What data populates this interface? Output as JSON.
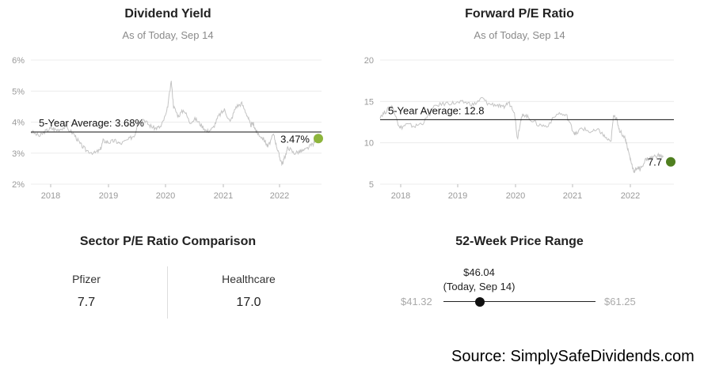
{
  "chart_data": [
    {
      "type": "line",
      "title": "Dividend Yield",
      "subtitle": "As of Today, Sep 14",
      "y_ticks": [
        "6%",
        "5%",
        "4%",
        "3%",
        "2%"
      ],
      "y_tick_values": [
        6,
        5,
        4,
        3,
        2
      ],
      "ylim": [
        2,
        6
      ],
      "x_ticks": [
        "2018",
        "2019",
        "2020",
        "2021",
        "2022"
      ],
      "xlim": [
        2017.75,
        2022.78
      ],
      "grid": "horizontal",
      "reference_line": {
        "label": "5-Year Average: 3.68%",
        "value": 3.68
      },
      "end_label": "3.47%",
      "end_value": 3.47,
      "end_marker_color": "#8db53c",
      "line_color": "#c4c4c4",
      "x": [
        2017.75,
        2017.9,
        2018.0,
        2018.1,
        2018.2,
        2018.35,
        2018.5,
        2018.6,
        2018.7,
        2018.85,
        2018.95,
        2019.0,
        2019.1,
        2019.2,
        2019.3,
        2019.45,
        2019.55,
        2019.6,
        2019.7,
        2019.8,
        2019.9,
        2020.0,
        2020.1,
        2020.18,
        2020.22,
        2020.3,
        2020.4,
        2020.5,
        2020.6,
        2020.7,
        2020.8,
        2020.9,
        2021.0,
        2021.1,
        2021.2,
        2021.3,
        2021.4,
        2021.5,
        2021.55,
        2021.6,
        2021.65,
        2021.7,
        2021.8,
        2021.85,
        2021.95,
        2022.0,
        2022.05,
        2022.1,
        2022.15,
        2022.2,
        2022.3,
        2022.4,
        2022.5,
        2022.6,
        2022.7
      ],
      "y": [
        3.7,
        3.55,
        3.7,
        3.8,
        3.75,
        3.85,
        3.6,
        3.3,
        3.1,
        3.0,
        3.1,
        3.4,
        3.35,
        3.4,
        3.3,
        3.45,
        3.6,
        4.0,
        4.1,
        3.9,
        3.8,
        3.85,
        4.3,
        5.3,
        4.5,
        4.2,
        4.4,
        4.0,
        4.1,
        3.9,
        3.7,
        3.8,
        4.2,
        4.4,
        4.0,
        4.5,
        4.6,
        4.2,
        3.9,
        3.95,
        3.7,
        3.6,
        3.4,
        3.2,
        3.6,
        3.25,
        2.9,
        2.65,
        2.9,
        3.2,
        3.0,
        3.05,
        3.1,
        3.25,
        3.4
      ]
    },
    {
      "type": "line",
      "title": "Forward P/E Ratio",
      "subtitle": "As of Today, Sep 14",
      "y_ticks": [
        "20",
        "15",
        "10",
        "5"
      ],
      "y_tick_values": [
        20,
        15,
        10,
        5
      ],
      "ylim": [
        5,
        20
      ],
      "x_ticks": [
        "2018",
        "2019",
        "2020",
        "2021",
        "2022"
      ],
      "xlim": [
        2017.75,
        2022.78
      ],
      "grid": "horizontal",
      "reference_line": {
        "label": "5-Year Average: 12.8",
        "value": 12.8
      },
      "end_label": "7.7",
      "end_value": 7.7,
      "end_marker_color": "#4f7f1f",
      "line_color": "#c4c4c4",
      "x": [
        2017.75,
        2017.85,
        2017.95,
        2018.05,
        2018.1,
        2018.2,
        2018.35,
        2018.5,
        2018.7,
        2018.9,
        2019.05,
        2019.2,
        2019.35,
        2019.5,
        2019.6,
        2019.75,
        2019.85,
        2019.95,
        2020.05,
        2020.1,
        2020.15,
        2020.2,
        2020.3,
        2020.45,
        2020.6,
        2020.8,
        2020.95,
        2021.05,
        2021.1,
        2021.2,
        2021.35,
        2021.5,
        2021.6,
        2021.7,
        2021.75,
        2021.8,
        2021.85,
        2021.95,
        2022.0,
        2022.05,
        2022.1,
        2022.15,
        2022.2,
        2022.3,
        2022.4,
        2022.5,
        2022.6
      ],
      "y": [
        13.2,
        13.8,
        14.5,
        12.5,
        11.8,
        12.2,
        12.0,
        12.5,
        14.5,
        14.8,
        14.8,
        14.9,
        14.6,
        15.4,
        14.7,
        14.6,
        14.2,
        14.9,
        13.8,
        10.5,
        12.5,
        13.5,
        13.0,
        12.2,
        12.0,
        13.6,
        13.2,
        11.5,
        11.0,
        11.8,
        11.3,
        11.5,
        10.7,
        10.0,
        13.5,
        12.8,
        11.5,
        10.5,
        9.0,
        7.6,
        6.5,
        7.0,
        6.8,
        8.0,
        8.2,
        8.5,
        8.3
      ]
    }
  ],
  "sector": {
    "title": "Sector P/E Ratio Comparison",
    "left_name": "Pfizer",
    "left_value": "7.7",
    "right_name": "Healthcare",
    "right_value": "17.0"
  },
  "range": {
    "title": "52-Week Price Range",
    "current_price": "$46.04",
    "current_note": "(Today, Sep 14)",
    "low": "$41.32",
    "high": "$61.25",
    "current_fraction": 0.237
  },
  "source": "Source: SimplySafeDividends.com"
}
